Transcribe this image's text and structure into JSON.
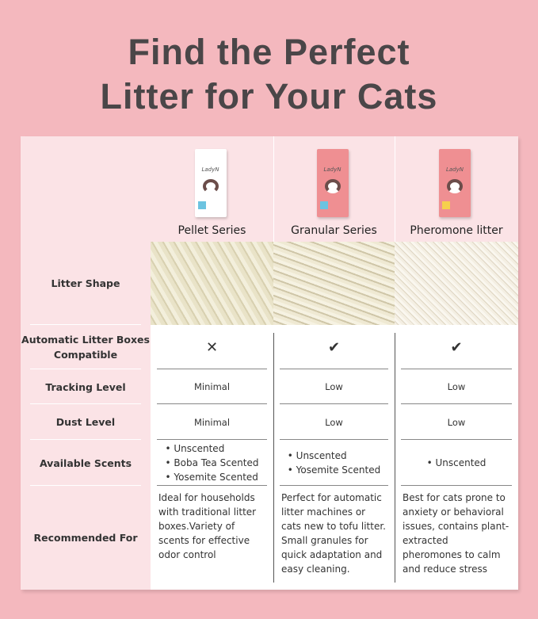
{
  "title": [
    "Find the Perfect",
    "Litter for Your Cats"
  ],
  "products": [
    {
      "name": "Pellet Series",
      "brand": "LadyN",
      "box_color": "#ffffff",
      "tag_color": "#6cc3e0",
      "texture": "pellet"
    },
    {
      "name": "Granular Series",
      "brand": "LadyN",
      "box_color": "#ef8f92",
      "tag_color": "#6cc3e0",
      "texture": "granular"
    },
    {
      "name": "Pheromone litter",
      "brand": "LadyN",
      "box_color": "#ef8f92",
      "tag_color": "#f6d04d",
      "texture": "fine"
    }
  ],
  "rows": {
    "shape": "Litter Shape",
    "auto": "Automatic Litter Boxes Compatible",
    "tracking": "Tracking Level",
    "dust": "Dust Level",
    "scents": "Available Scents",
    "recommended": "Recommended For"
  },
  "values": [
    {
      "auto": "✕",
      "tracking": "Minimal",
      "dust": "Minimal",
      "scents": [
        "• Unscented",
        "• Boba Tea Scented",
        "• Yosemite Scented"
      ],
      "recommended": "Ideal for households with traditional litter boxes.Variety of scents for effective odor control"
    },
    {
      "auto": "✔",
      "tracking": "Low",
      "dust": "Low",
      "scents": [
        "• Unscented",
        "• Yosemite Scented"
      ],
      "recommended": "Perfect for automatic litter machines or cats new to tofu litter. Small granules for quick adaptation and easy cleaning."
    },
    {
      "auto": "✔",
      "tracking": "Low",
      "dust": "Low",
      "scents": [
        "• Unscented"
      ],
      "recommended": "Best for cats prone to anxiety or behavioral issues, contains plant-extracted pheromones to calm and reduce stress"
    }
  ],
  "colors": {
    "background": "#f4b8be",
    "label_bg": "#fbe3e6",
    "title": "#4a4648"
  }
}
